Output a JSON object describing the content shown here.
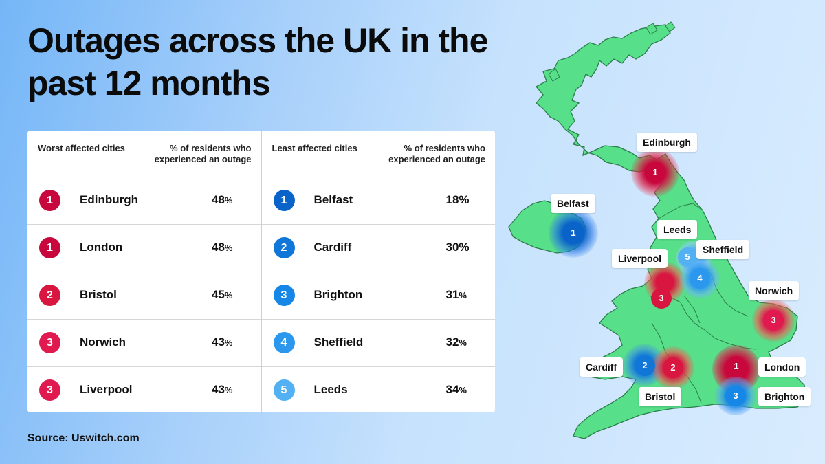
{
  "title": "Outages across the UK in the past 12 months",
  "colors": {
    "rank1_worst": "#c8083d",
    "rank2_worst": "#d9163f",
    "rank3_worst": "#e01a4f",
    "rank1_least": "#0a63c9",
    "rank2_least": "#1077d9",
    "rank3_least": "#1687e6",
    "rank4_least": "#2b98ee",
    "rank5_least": "#53b0f2",
    "land": "#57df8a"
  },
  "worst": {
    "header_city": "Worst affected cities",
    "header_pct": "% of residents who experienced an outage",
    "rows": [
      {
        "rank": "1",
        "city": "Edinburgh",
        "pct": "48",
        "sign": "%"
      },
      {
        "rank": "1",
        "city": "London",
        "pct": "48",
        "sign": "%"
      },
      {
        "rank": "2",
        "city": "Bristol",
        "pct": "45",
        "sign": "%"
      },
      {
        "rank": "3",
        "city": "Norwich",
        "pct": "43",
        "sign": "%"
      },
      {
        "rank": "3",
        "city": "Liverpool",
        "pct": "43",
        "sign": "%"
      }
    ]
  },
  "least": {
    "header_city": "Least affected cities",
    "header_pct": "% of residents who experienced an outage",
    "rows": [
      {
        "rank": "1",
        "city": "Belfast",
        "pct": "18",
        "sign": "%"
      },
      {
        "rank": "2",
        "city": "Cardiff",
        "pct": "30",
        "sign": "%"
      },
      {
        "rank": "3",
        "city": "Brighton",
        "pct": "31",
        "sign": "%"
      },
      {
        "rank": "4",
        "city": "Sheffield",
        "pct": "32",
        "sign": "%"
      },
      {
        "rank": "5",
        "city": "Leeds",
        "pct": "34",
        "sign": "%"
      }
    ]
  },
  "map": {
    "markers": [
      {
        "city": "Edinburgh",
        "rank": "1",
        "type": "worst"
      },
      {
        "city": "Belfast",
        "rank": "1",
        "type": "least"
      },
      {
        "city": "Leeds",
        "rank": "5",
        "type": "least"
      },
      {
        "city": "Sheffield",
        "rank": "4",
        "type": "least"
      },
      {
        "city": "Liverpool",
        "rank": "3",
        "type": "worst"
      },
      {
        "city": "Norwich",
        "rank": "3",
        "type": "worst"
      },
      {
        "city": "Cardiff",
        "rank": "2",
        "type": "least"
      },
      {
        "city": "Bristol",
        "rank": "2",
        "type": "worst"
      },
      {
        "city": "London",
        "rank": "1",
        "type": "worst"
      },
      {
        "city": "Brighton",
        "rank": "3",
        "type": "least"
      }
    ]
  },
  "source": "Source: Uswitch.com"
}
